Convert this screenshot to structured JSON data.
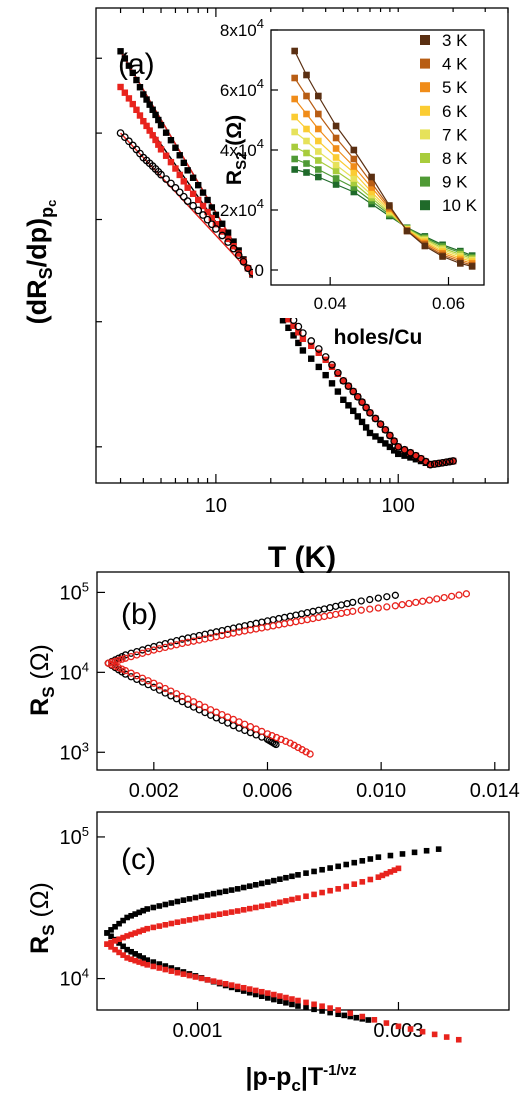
{
  "chart_data": [
    {
      "panel": "(a)",
      "type": "scatter",
      "xlabel": "T (K)",
      "ylabel": "(dR_S/dp)_pc",
      "xscale": "log",
      "xlim": [
        2.2,
        400
      ],
      "xticks": [
        10,
        100
      ],
      "xtick_labels": [
        "10",
        "100"
      ],
      "yscale": "log",
      "ylim": [
        0.75,
        1.75
      ],
      "series": [
        {
          "marker": "square-filled",
          "color": "#000000",
          "x": [
            3,
            4,
            5,
            7,
            10,
            15,
            20,
            30,
            50,
            70,
            100,
            150,
            200
          ],
          "y": [
            1.62,
            1.5,
            1.42,
            1.31,
            1.21,
            1.1,
            1.03,
            0.95,
            0.87,
            0.82,
            0.79,
            0.775,
            0.78
          ]
        },
        {
          "marker": "square-filled",
          "color": "#e8231d",
          "x": [
            3,
            4,
            5,
            7,
            10,
            15,
            20,
            30,
            50,
            70,
            100,
            150,
            200
          ],
          "y": [
            1.52,
            1.43,
            1.36,
            1.27,
            1.19,
            1.1,
            1.04,
            0.97,
            0.9,
            0.85,
            0.8,
            0.775,
            0.78
          ]
        },
        {
          "marker": "circle-open",
          "color": "#000000",
          "x": [
            3,
            4,
            5,
            7,
            10,
            15,
            20,
            30,
            50,
            70,
            100,
            150,
            200
          ],
          "y": [
            1.4,
            1.34,
            1.3,
            1.24,
            1.18,
            1.1,
            1.05,
            0.98,
            0.9,
            0.85,
            0.8,
            0.775,
            0.78
          ]
        }
      ],
      "fit_lines": [
        {
          "color": "#000000",
          "x": [
            3,
            20
          ],
          "y": [
            1.62,
            1.03
          ]
        },
        {
          "color": "#e8231d",
          "x": [
            3,
            20
          ],
          "y": [
            1.62,
            1.03
          ]
        },
        {
          "color": "#000000",
          "x": [
            3,
            20
          ],
          "y": [
            1.52,
            1.04
          ]
        },
        {
          "color": "#e8231d",
          "x": [
            3,
            20
          ],
          "y": [
            1.4,
            1.05
          ]
        }
      ],
      "inset": {
        "type": "line",
        "xlabel": "holes/Cu",
        "ylabel": "R_S2 (Ω)",
        "xlim": [
          0.03,
          0.066
        ],
        "xticks": [
          0.04,
          0.06
        ],
        "xtick_labels": [
          "0.04",
          "0.06"
        ],
        "ylim": [
          -5000,
          80000
        ],
        "yticks": [
          0,
          20000,
          40000,
          60000,
          80000
        ],
        "ytick_labels": [
          "0",
          "2x10^4",
          "4x10^4",
          "6x10^4",
          "8x10^4"
        ],
        "legend_position": "right",
        "x": [
          0.034,
          0.036,
          0.038,
          0.041,
          0.044,
          0.047,
          0.05,
          0.053,
          0.056,
          0.059,
          0.062,
          0.064
        ],
        "series": [
          {
            "name": "3 K",
            "color": "#5a2f12",
            "values": [
              73000,
              65000,
              58000,
              48000,
              40000,
              31000,
              21500,
              13000,
              8000,
              4500,
              2200,
              1200
            ]
          },
          {
            "name": "4 K",
            "color": "#b85d14",
            "values": [
              64000,
              58000,
              52000,
              44000,
              37000,
              29000,
              21000,
              13000,
              8500,
              5000,
              2800,
              1600
            ]
          },
          {
            "name": "5 K",
            "color": "#f08c19",
            "values": [
              57000,
              52000,
              47000,
              40500,
              34500,
              27500,
              20500,
              13200,
              9000,
              5600,
              3400,
              2200
            ]
          },
          {
            "name": "6 K",
            "color": "#fbcc33",
            "values": [
              51000,
              47000,
              43000,
              37500,
              32500,
              26000,
              20000,
              13400,
              9500,
              6200,
              4000,
              2800
            ]
          },
          {
            "name": "7 K",
            "color": "#e6e25a",
            "values": [
              46000,
              43000,
              39500,
              35000,
              30500,
              25000,
              19500,
              13600,
              10000,
              6800,
              4600,
              3300
            ]
          },
          {
            "name": "8 K",
            "color": "#a8cc3c",
            "values": [
              41000,
              39000,
              36500,
              33000,
              29000,
              24000,
              19000,
              13800,
              10400,
              7300,
              5200,
              3800
            ]
          },
          {
            "name": "9 K",
            "color": "#4f9a35",
            "values": [
              37000,
              35500,
              33500,
              30500,
              27500,
              23000,
              18500,
              14000,
              10800,
              7900,
              5800,
              4300
            ]
          },
          {
            "name": "10 K",
            "color": "#1f6a2a",
            "values": [
              33500,
              32500,
              31000,
              28500,
              26000,
              22000,
              18000,
              14100,
              11200,
              8400,
              6300,
              4800
            ]
          }
        ]
      }
    },
    {
      "panel": "(b)",
      "type": "scatter",
      "xlabel": "",
      "ylabel": "R_S (Ω)",
      "xlim": [
        0,
        0.0145
      ],
      "xticks": [
        0.002,
        0.006,
        0.01,
        0.014
      ],
      "xtick_labels": [
        "0.002",
        "0.006",
        "0.010",
        "0.014"
      ],
      "yscale": "log",
      "ylim": [
        600,
        180000
      ],
      "yticks": [
        1000,
        10000,
        100000
      ],
      "series": [
        {
          "name": "",
          "color": "#000000",
          "marker": "circle-open",
          "upper": {
            "x": [
              0.0004,
              0.001,
              0.002,
              0.003,
              0.004,
              0.005,
              0.006,
              0.007,
              0.008,
              0.009,
              0.0105
            ],
            "y": [
              13000,
              16500,
              21000,
              26000,
              31000,
              37000,
              44000,
              52000,
              62000,
              75000,
              92000
            ]
          },
          "lower": {
            "x": [
              0.0004,
              0.001,
              0.002,
              0.003,
              0.004,
              0.005,
              0.006,
              0.0063
            ],
            "y": [
              13000,
              9500,
              6500,
              4300,
              2900,
              2000,
              1450,
              1250
            ]
          }
        },
        {
          "name": "",
          "color": "#e8231d",
          "marker": "circle-open",
          "upper": {
            "x": [
              0.0004,
              0.001,
              0.002,
              0.003,
              0.004,
              0.005,
              0.006,
              0.007,
              0.008,
              0.009,
              0.0105,
              0.0117,
              0.013
            ],
            "y": [
              13000,
              15000,
              19000,
              23000,
              27000,
              32000,
              37000,
              43000,
              50000,
              58000,
              68000,
              80000,
              96000
            ]
          },
          "lower": {
            "x": [
              0.0004,
              0.001,
              0.002,
              0.003,
              0.004,
              0.005,
              0.006,
              0.0068,
              0.0075
            ],
            "y": [
              13000,
              10500,
              7300,
              5000,
              3400,
              2400,
              1700,
              1300,
              950
            ]
          }
        }
      ]
    },
    {
      "panel": "(c)",
      "type": "scatter",
      "xlabel": "|p-p_c|T^-1/νz",
      "ylabel": "R_S (Ω)",
      "xlim": [
        0,
        0.0041
      ],
      "xticks": [
        0.001,
        0.003
      ],
      "xtick_labels": [
        "0.001",
        "0.003"
      ],
      "yscale": "log",
      "ylim": [
        6000,
        150000
      ],
      "yticks": [
        10000,
        100000
      ],
      "series": [
        {
          "name": "",
          "color": "#000000",
          "marker": "square-filled",
          "upper": {
            "x": [
              0.0001,
              0.0003,
              0.0005,
              0.0008,
              0.0011,
              0.0014,
              0.0017,
              0.002,
              0.0024,
              0.0028,
              0.0034
            ],
            "y": [
              21000,
              27000,
              31000,
              35000,
              39000,
              43000,
              48000,
              54000,
              62000,
              72000,
              82000
            ]
          },
          "lower": {
            "x": [
              0.0001,
              0.0003,
              0.0005,
              0.0008,
              0.0011,
              0.0014,
              0.0017,
              0.002,
              0.0024,
              0.0027
            ],
            "y": [
              21000,
              16000,
              13500,
              11500,
              9800,
              8400,
              7300,
              6400,
              5600,
              5100
            ]
          }
        },
        {
          "name": "",
          "color": "#e8231d",
          "marker": "square-filled",
          "upper": {
            "x": [
              0.0001,
              0.0003,
              0.0005,
              0.0008,
              0.0011,
              0.0014,
              0.0017,
              0.002,
              0.0024,
              0.0028,
              0.003
            ],
            "y": [
              17500,
              20000,
              22500,
              25000,
              27500,
              30000,
              33000,
              37000,
              43000,
              52000,
              60000
            ]
          },
          "lower": {
            "x": [
              0.0001,
              0.0003,
              0.0005,
              0.0008,
              0.0011,
              0.0014,
              0.0017,
              0.002,
              0.0024,
              0.003,
              0.0036
            ],
            "y": [
              17500,
              14000,
              12500,
              11000,
              9800,
              8800,
              7900,
              7000,
              6000,
              4600,
              3700
            ]
          }
        }
      ]
    }
  ]
}
